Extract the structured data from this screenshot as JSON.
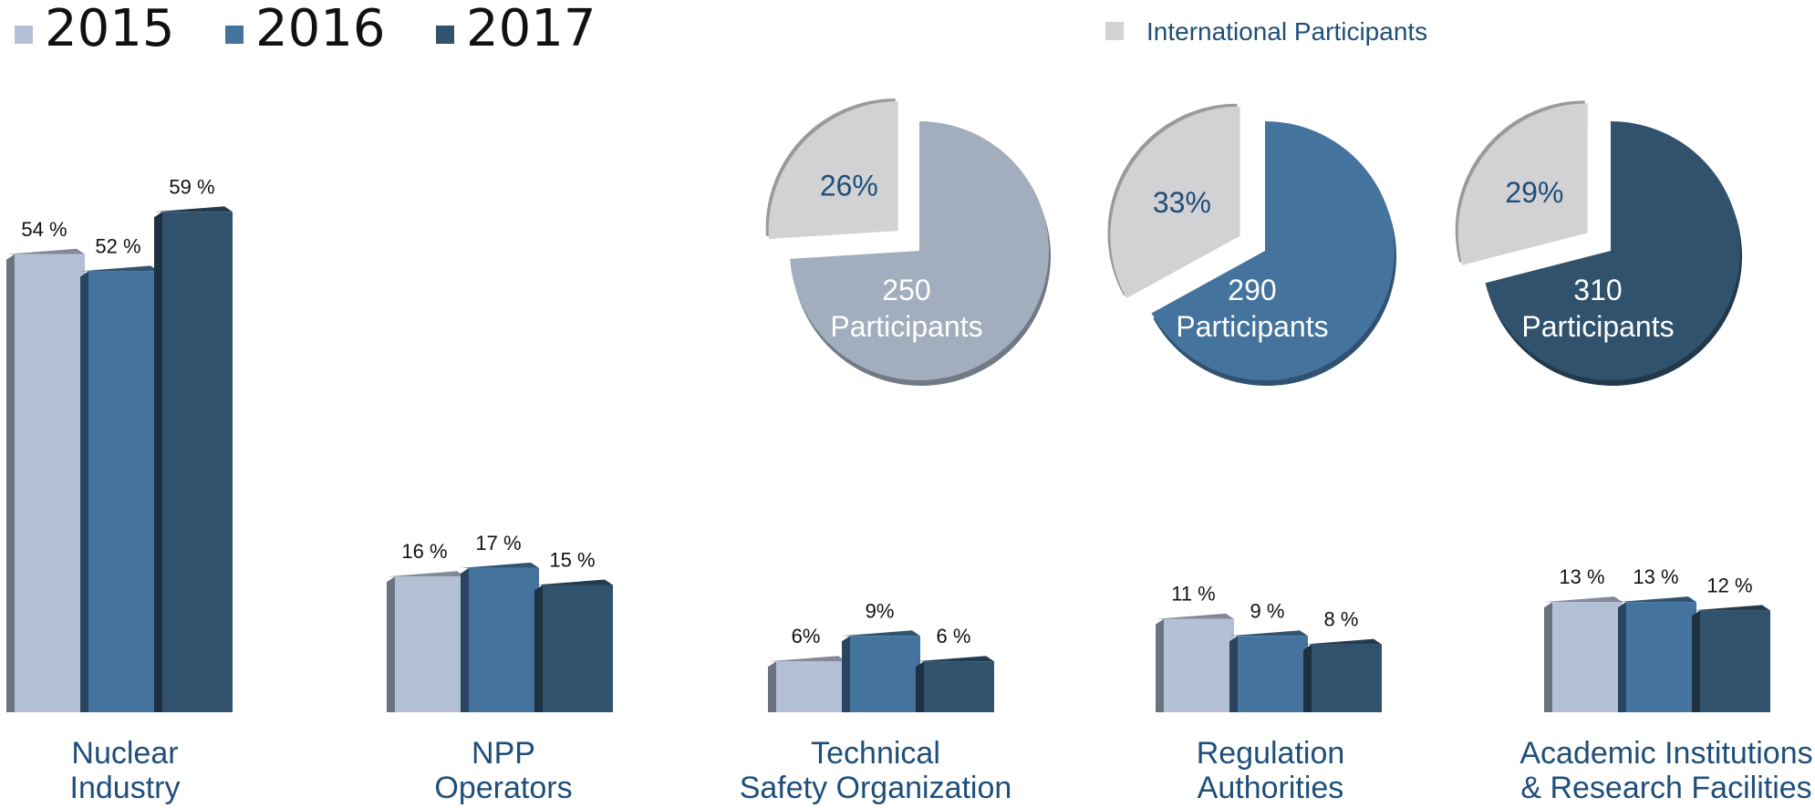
{
  "colors": {
    "2015": "#b4c0d6",
    "2016": "#44739e",
    "2017": "#30526c",
    "international": "#d2d2d4",
    "label_blue": "#1f4e79"
  },
  "legend": {
    "years": [
      "2015",
      "2016",
      "2017"
    ],
    "international_label": "International Participants"
  },
  "chart_data": [
    {
      "type": "bar",
      "series": [
        {
          "name": "2015",
          "values": [
            54,
            16,
            6,
            11,
            13
          ],
          "labels": [
            "54 %",
            "16 %",
            "6%",
            "11 %",
            "13 %"
          ]
        },
        {
          "name": "2016",
          "values": [
            52,
            17,
            9,
            9,
            13
          ],
          "labels": [
            "52 %",
            "17 %",
            "9%",
            "9 %",
            "13 %"
          ]
        },
        {
          "name": "2017",
          "values": [
            59,
            15,
            6,
            8,
            12
          ],
          "labels": [
            "59  %",
            "15 %",
            "6 %",
            "8 %",
            "12 %"
          ]
        }
      ],
      "categories": [
        [
          "Nuclear",
          "Industry"
        ],
        [
          "NPP",
          "Operators"
        ],
        [
          "Technical",
          "Safety Organization"
        ],
        [
          "Regulation",
          "Authorities"
        ],
        [
          "Academic Institutions",
          "& Research Facilities"
        ]
      ],
      "unit": "%"
    },
    {
      "type": "pie",
      "pies": [
        {
          "year": "2015",
          "international_pct": 26,
          "international_label": "26%",
          "total": 250,
          "total_label": [
            "250",
            "Participants"
          ]
        },
        {
          "year": "2016",
          "international_pct": 33,
          "international_label": "33%",
          "total": 290,
          "total_label": [
            "290",
            "Participants"
          ]
        },
        {
          "year": "2017",
          "international_pct": 29,
          "international_label": "29%",
          "total": 310,
          "total_label": [
            "310",
            "Participants"
          ]
        }
      ]
    }
  ]
}
